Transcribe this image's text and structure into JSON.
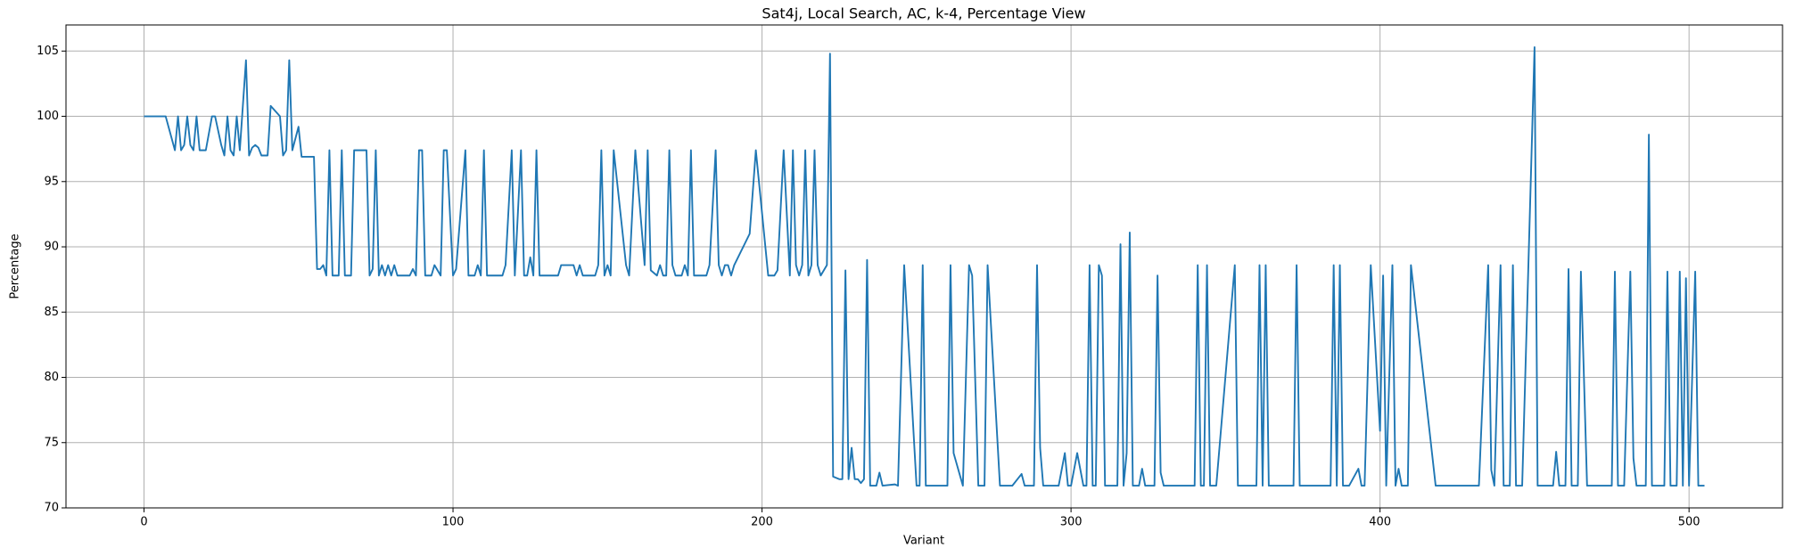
{
  "chart_data": {
    "type": "line",
    "title": "Sat4j, Local Search, AC, k-4, Percentage View",
    "x_label": "Variant",
    "y_label": "Percentage",
    "xlim": [
      -25.25,
      530.25
    ],
    "ylim": [
      70.0,
      107.0
    ],
    "xticks": [
      0,
      100,
      200,
      300,
      400,
      500
    ],
    "yticks": [
      70,
      75,
      80,
      85,
      90,
      95,
      100,
      105
    ],
    "grid": true,
    "x": [
      0,
      7,
      10,
      11,
      12,
      13,
      14,
      15,
      16,
      17,
      18,
      20,
      22,
      23,
      25,
      26,
      27,
      28,
      29,
      30,
      31,
      33,
      34,
      35,
      36,
      37,
      38,
      40,
      41,
      44,
      45,
      46,
      47,
      48,
      50,
      51,
      55,
      56,
      57,
      58,
      59,
      60,
      61,
      63,
      64,
      65,
      67,
      68,
      72,
      73,
      74,
      75,
      76,
      77,
      78,
      79,
      80,
      81,
      82,
      86,
      87,
      88,
      89,
      90,
      91,
      93,
      94,
      96,
      97,
      98,
      100,
      101,
      104,
      105,
      107,
      108,
      109,
      110,
      111,
      116,
      117,
      119,
      120,
      122,
      123,
      124,
      125,
      126,
      127,
      128,
      134,
      135,
      139,
      140,
      141,
      142,
      146,
      147,
      148,
      149,
      150,
      151,
      152,
      156,
      157,
      159,
      162,
      163,
      164,
      166,
      167,
      168,
      169,
      170,
      171,
      172,
      174,
      175,
      176,
      177,
      178,
      182,
      183,
      185,
      186,
      187,
      188,
      189,
      190,
      191,
      196,
      198,
      202,
      204,
      205,
      207,
      209,
      210,
      211,
      212,
      213,
      214,
      215,
      216,
      217,
      218,
      219,
      221,
      222,
      223,
      225,
      226,
      227,
      228,
      229,
      230,
      231,
      232,
      233,
      234,
      235,
      237,
      238,
      239,
      243,
      244,
      246,
      250,
      251,
      252,
      253,
      260,
      261,
      262,
      265,
      267,
      268,
      270,
      272,
      273,
      277,
      281,
      284,
      285,
      288,
      289,
      290,
      291,
      296,
      298,
      299,
      300,
      302,
      304,
      305,
      306,
      307,
      308,
      309,
      310,
      311,
      315,
      316,
      317,
      318,
      319,
      320,
      322,
      323,
      324,
      327,
      328,
      329,
      330,
      340,
      341,
      342,
      343,
      344,
      345,
      347,
      353,
      354,
      360,
      361,
      362,
      363,
      364,
      372,
      373,
      374,
      384,
      385,
      386,
      387,
      388,
      390,
      393,
      394,
      395,
      397,
      400,
      401,
      402,
      404,
      405,
      406,
      407,
      409,
      410,
      418,
      432,
      435,
      436,
      437,
      439,
      440,
      442,
      443,
      444,
      446,
      450,
      451,
      456,
      457,
      458,
      460,
      461,
      462,
      464,
      465,
      467,
      475,
      476,
      477,
      479,
      481,
      482,
      483,
      486,
      487,
      488,
      492,
      493,
      494,
      496,
      497,
      498,
      499,
      500,
      502,
      503,
      505
    ],
    "series": [
      {
        "color": "#1f77b4",
        "values": [
          100,
          100,
          97.4,
          100,
          97.4,
          97.8,
          100,
          97.8,
          97.4,
          100,
          97.4,
          97.4,
          100,
          100,
          97.8,
          97,
          100,
          97.4,
          97,
          100,
          97.4,
          104.3,
          97,
          97.6,
          97.8,
          97.6,
          97,
          97,
          100.8,
          100,
          97,
          97.4,
          104.3,
          97.4,
          99.2,
          96.9,
          96.9,
          88.3,
          88.3,
          88.6,
          87.8,
          97.4,
          87.8,
          87.8,
          97.4,
          87.8,
          87.8,
          97.4,
          97.4,
          87.8,
          88.3,
          97.4,
          87.8,
          88.6,
          87.8,
          88.6,
          87.8,
          88.6,
          87.8,
          87.8,
          88.3,
          87.8,
          97.4,
          97.4,
          87.8,
          87.8,
          88.6,
          87.8,
          97.4,
          97.4,
          87.8,
          88.3,
          97.4,
          87.8,
          87.8,
          88.6,
          87.8,
          97.4,
          87.8,
          87.8,
          88.6,
          97.4,
          87.8,
          97.4,
          87.8,
          87.8,
          89.2,
          87.8,
          97.4,
          87.8,
          87.8,
          88.6,
          88.6,
          87.8,
          88.6,
          87.8,
          87.8,
          88.6,
          97.4,
          87.8,
          88.6,
          87.8,
          97.4,
          88.6,
          87.8,
          97.4,
          88.6,
          97.4,
          88.2,
          87.8,
          88.6,
          87.8,
          87.8,
          97.4,
          88.6,
          87.8,
          87.8,
          88.6,
          87.8,
          97.4,
          87.8,
          87.8,
          88.6,
          97.4,
          88.6,
          87.8,
          88.6,
          88.6,
          87.8,
          88.6,
          91,
          97.4,
          87.8,
          87.8,
          88.2,
          97.4,
          87.8,
          97.4,
          88.6,
          87.8,
          88.6,
          97.4,
          87.8,
          88.6,
          97.4,
          88.6,
          87.8,
          88.6,
          104.8,
          72.4,
          72.2,
          72.2,
          88.2,
          72.2,
          74.6,
          72.2,
          72.2,
          71.9,
          72.2,
          89,
          71.7,
          71.7,
          72.7,
          71.7,
          71.8,
          71.7,
          88.6,
          71.7,
          71.7,
          88.6,
          71.7,
          71.7,
          88.6,
          74.2,
          71.7,
          88.6,
          87.8,
          71.7,
          71.7,
          88.6,
          71.7,
          71.7,
          72.6,
          71.7,
          71.7,
          88.6,
          74.6,
          71.7,
          71.7,
          74.2,
          71.7,
          71.7,
          74.2,
          71.7,
          71.7,
          88.6,
          71.7,
          71.7,
          88.6,
          87.8,
          71.7,
          71.7,
          90.2,
          71.7,
          74.2,
          91.1,
          71.7,
          71.7,
          73,
          71.7,
          71.7,
          87.8,
          72.7,
          71.7,
          71.7,
          88.6,
          71.7,
          71.7,
          88.6,
          71.7,
          71.7,
          88.6,
          71.7,
          71.7,
          88.6,
          71.7,
          88.6,
          71.7,
          71.7,
          88.6,
          71.7,
          71.7,
          88.6,
          71.7,
          88.6,
          71.7,
          71.7,
          73,
          71.7,
          71.7,
          88.6,
          75.9,
          87.8,
          71.7,
          88.6,
          71.7,
          73,
          71.7,
          71.7,
          88.6,
          71.7,
          71.7,
          88.6,
          72.9,
          71.7,
          88.6,
          71.7,
          71.7,
          88.6,
          71.7,
          71.7,
          105.3,
          71.7,
          71.7,
          74.3,
          71.7,
          71.7,
          88.3,
          71.7,
          71.7,
          88.1,
          71.7,
          71.7,
          88.1,
          71.7,
          71.7,
          88.1,
          73.8,
          71.7,
          71.7,
          98.6,
          71.7,
          71.7,
          88.1,
          71.7,
          71.7,
          88.1,
          71.7,
          87.6,
          71.7,
          88.1,
          71.7,
          71.7
        ]
      }
    ]
  }
}
